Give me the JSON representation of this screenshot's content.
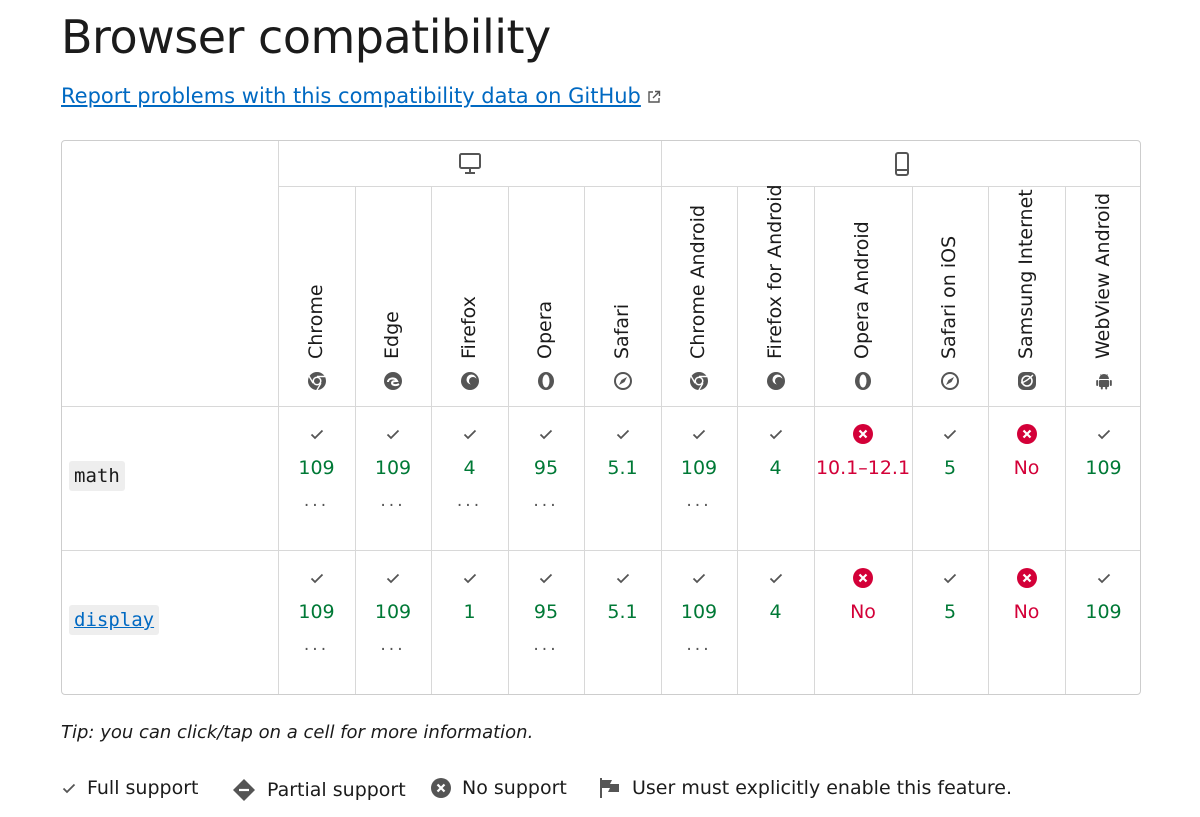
{
  "title": "Browser compatibility",
  "report_link": "Report problems with this compatibility data on GitHub",
  "device_groups": [
    {
      "name": "desktop-icon"
    },
    {
      "name": "mobile-icon"
    }
  ],
  "browsers": [
    {
      "name": "Chrome",
      "icon": "chrome-icon"
    },
    {
      "name": "Edge",
      "icon": "edge-icon"
    },
    {
      "name": "Firefox",
      "icon": "firefox-icon"
    },
    {
      "name": "Opera",
      "icon": "opera-icon"
    },
    {
      "name": "Safari",
      "icon": "safari-icon"
    },
    {
      "name": "Chrome Android",
      "icon": "chrome-icon"
    },
    {
      "name": "Firefox for Android",
      "icon": "firefox-icon"
    },
    {
      "name": "Opera Android",
      "icon": "opera-icon"
    },
    {
      "name": "Safari on iOS",
      "icon": "safari-icon"
    },
    {
      "name": "Samsung Internet",
      "icon": "samsung-internet-icon"
    },
    {
      "name": "WebView Android",
      "icon": "android-icon"
    }
  ],
  "rows": [
    {
      "feature": "math",
      "is_link": false,
      "cells": [
        {
          "support": "full",
          "value": "109",
          "more": "..."
        },
        {
          "support": "full",
          "value": "109",
          "more": "..."
        },
        {
          "support": "full",
          "value": "4",
          "more": "..."
        },
        {
          "support": "full",
          "value": "95",
          "more": "..."
        },
        {
          "support": "full",
          "value": "5.1",
          "more": ""
        },
        {
          "support": "full",
          "value": "109",
          "more": "..."
        },
        {
          "support": "full",
          "value": "4",
          "more": ""
        },
        {
          "support": "none",
          "value": "10.1–12.1",
          "more": ""
        },
        {
          "support": "full",
          "value": "5",
          "more": ""
        },
        {
          "support": "none",
          "value": "No",
          "more": ""
        },
        {
          "support": "full",
          "value": "109",
          "more": ""
        }
      ]
    },
    {
      "feature": "display",
      "is_link": true,
      "cells": [
        {
          "support": "full",
          "value": "109",
          "more": "..."
        },
        {
          "support": "full",
          "value": "109",
          "more": "..."
        },
        {
          "support": "full",
          "value": "1",
          "more": ""
        },
        {
          "support": "full",
          "value": "95",
          "more": "..."
        },
        {
          "support": "full",
          "value": "5.1",
          "more": ""
        },
        {
          "support": "full",
          "value": "109",
          "more": "..."
        },
        {
          "support": "full",
          "value": "4",
          "more": ""
        },
        {
          "support": "none",
          "value": "No",
          "more": ""
        },
        {
          "support": "full",
          "value": "5",
          "more": ""
        },
        {
          "support": "none",
          "value": "No",
          "more": ""
        },
        {
          "support": "full",
          "value": "109",
          "more": ""
        }
      ]
    }
  ],
  "tip": "Tip: you can click/tap on a cell for more information.",
  "legend": [
    {
      "icon": "check-icon",
      "label": "Full support"
    },
    {
      "icon": "partial-support-icon",
      "label": "Partial support"
    },
    {
      "icon": "no-support-icon",
      "label": "No support"
    },
    {
      "icon": "flag-icon",
      "label": "User must explicitly enable this feature."
    }
  ],
  "colors": {
    "full": "#007936",
    "none": "#d30038",
    "link": "#0069c2"
  }
}
